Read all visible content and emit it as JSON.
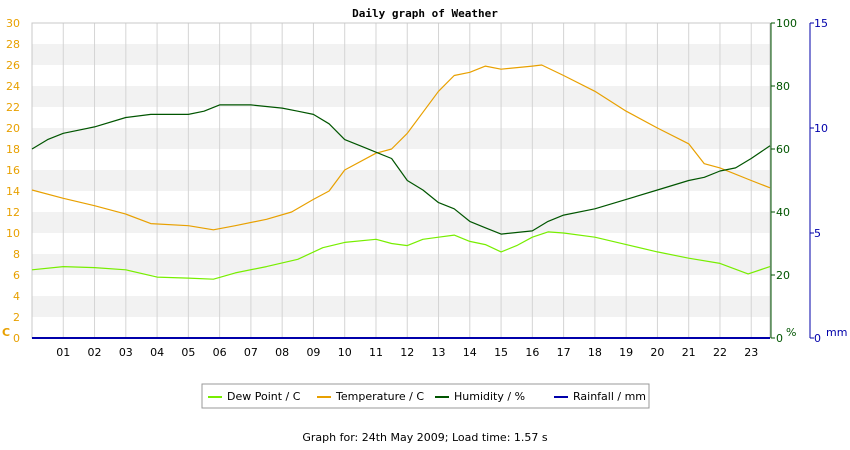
{
  "chart_data": {
    "type": "line",
    "title": "Daily graph of Weather",
    "x_ticks": [
      "01",
      "02",
      "03",
      "04",
      "05",
      "06",
      "07",
      "08",
      "09",
      "10",
      "11",
      "12",
      "13",
      "14",
      "15",
      "16",
      "17",
      "18",
      "19",
      "20",
      "21",
      "22",
      "23"
    ],
    "xlim": [
      0,
      23.6
    ],
    "axes": {
      "left": {
        "unit": "C",
        "range": [
          0,
          30
        ],
        "ticks": [
          0,
          2,
          4,
          6,
          8,
          10,
          12,
          14,
          16,
          18,
          20,
          22,
          24,
          26,
          28,
          30
        ],
        "color": "#e8a000"
      },
      "right1": {
        "unit": "%",
        "range": [
          0,
          100
        ],
        "ticks": [
          0,
          20,
          40,
          60,
          80,
          100
        ],
        "color": "#005500"
      },
      "right2": {
        "unit": "mm",
        "range": [
          0,
          15
        ],
        "ticks": [
          0,
          5,
          10,
          15
        ],
        "color": "#0000aa"
      }
    },
    "grid": true,
    "legend_placement": "bottom-center",
    "series": [
      {
        "name": "Dew Point / C",
        "axis": "left",
        "color": "#77ee00",
        "x": [
          0,
          1,
          2,
          3,
          4,
          5,
          5.8,
          6.5,
          7.5,
          8.5,
          9.3,
          10,
          11,
          11.5,
          12,
          12.5,
          13,
          13.5,
          14,
          14.5,
          15,
          15.5,
          16,
          16.5,
          17,
          18,
          19,
          20,
          21,
          22,
          22.9,
          23.6
        ],
        "y": [
          6.5,
          6.8,
          6.7,
          6.5,
          5.8,
          5.7,
          5.6,
          6.2,
          6.8,
          7.5,
          8.6,
          9.1,
          9.4,
          9.0,
          8.8,
          9.4,
          9.6,
          9.8,
          9.2,
          8.9,
          8.2,
          8.8,
          9.6,
          10.1,
          10.0,
          9.6,
          8.9,
          8.2,
          7.6,
          7.1,
          6.1,
          6.8
        ]
      },
      {
        "name": "Temperature / C",
        "axis": "left",
        "color": "#e8a000",
        "x": [
          0,
          1,
          2,
          3,
          3.8,
          5,
          5.8,
          6.5,
          7.5,
          8.3,
          9,
          9.5,
          10,
          11,
          11.5,
          12,
          12.5,
          13,
          13.5,
          14,
          14.5,
          15,
          16,
          16.3,
          17,
          18,
          19,
          20,
          21,
          21.5,
          22,
          23,
          23.6
        ],
        "y": [
          14.1,
          13.3,
          12.6,
          11.8,
          10.9,
          10.7,
          10.3,
          10.7,
          11.3,
          12.0,
          13.2,
          14.0,
          16.0,
          17.6,
          18.0,
          19.5,
          21.5,
          23.5,
          25.0,
          25.3,
          25.9,
          25.6,
          25.9,
          26.0,
          25.0,
          23.5,
          21.6,
          20.0,
          18.5,
          16.6,
          16.2,
          15.0,
          14.3
        ]
      },
      {
        "name": "Humidity / %",
        "axis": "right1",
        "color": "#005500",
        "x": [
          0,
          0.5,
          1,
          2,
          3,
          3.8,
          5,
          5.5,
          6,
          7,
          8,
          8.5,
          9,
          9.5,
          10,
          10.5,
          11,
          11.5,
          12,
          12.5,
          13,
          13.5,
          14,
          14.5,
          15,
          16,
          16.5,
          17,
          18,
          19,
          20,
          21,
          21.5,
          22,
          22.5,
          23,
          23.6
        ],
        "y": [
          60,
          63,
          65,
          67,
          70,
          71,
          71,
          72,
          74,
          74,
          73,
          72,
          71,
          68,
          63,
          61,
          59,
          57,
          50,
          47,
          43,
          41,
          37,
          35,
          33,
          34,
          37,
          39,
          41,
          44,
          47,
          50,
          51,
          53,
          54,
          57,
          61
        ]
      },
      {
        "name": "Rainfall / mm",
        "axis": "right2",
        "color": "#0000aa",
        "x": [
          0,
          23.6
        ],
        "y": [
          0,
          0
        ]
      }
    ]
  },
  "footer": "Graph for: 24th May 2009; Load time: 1.57 s"
}
